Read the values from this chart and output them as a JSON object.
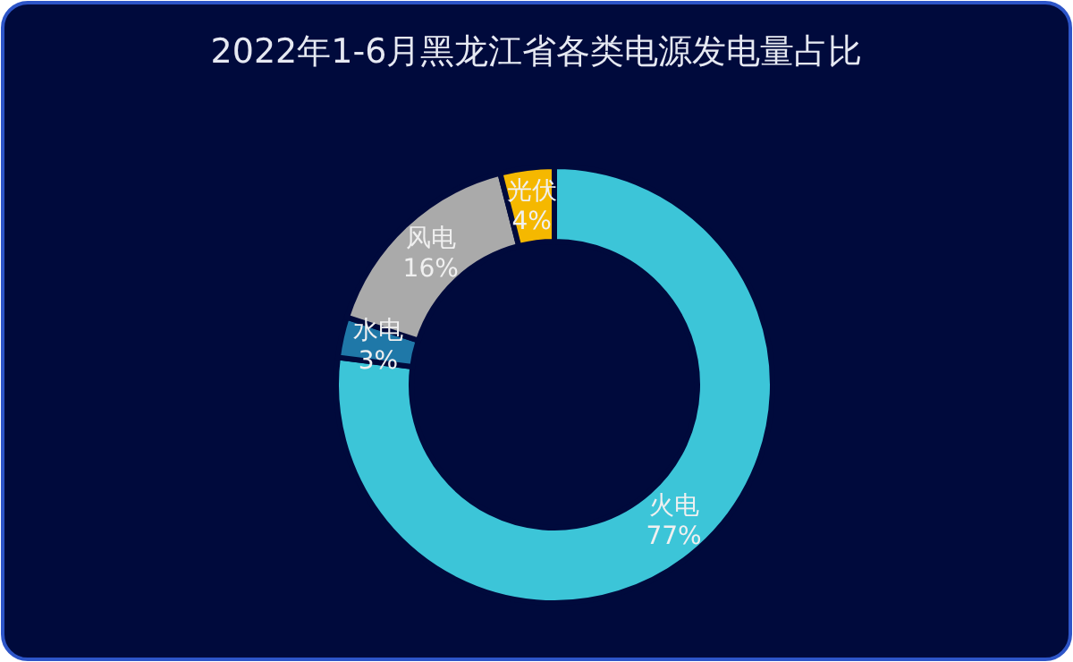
{
  "chart_data": {
    "type": "donut",
    "title": "2022年1-6月黑龙江省各类电源发电量占比",
    "categories": [
      "火电",
      "水电",
      "风电",
      "光伏"
    ],
    "values": [
      77,
      3,
      16,
      4
    ],
    "colors": [
      "#3cc5d8",
      "#1f78a8",
      "#aaaaaa",
      "#f5b800"
    ],
    "value_labels": [
      "77%",
      "3%",
      "16%",
      "4%"
    ]
  }
}
